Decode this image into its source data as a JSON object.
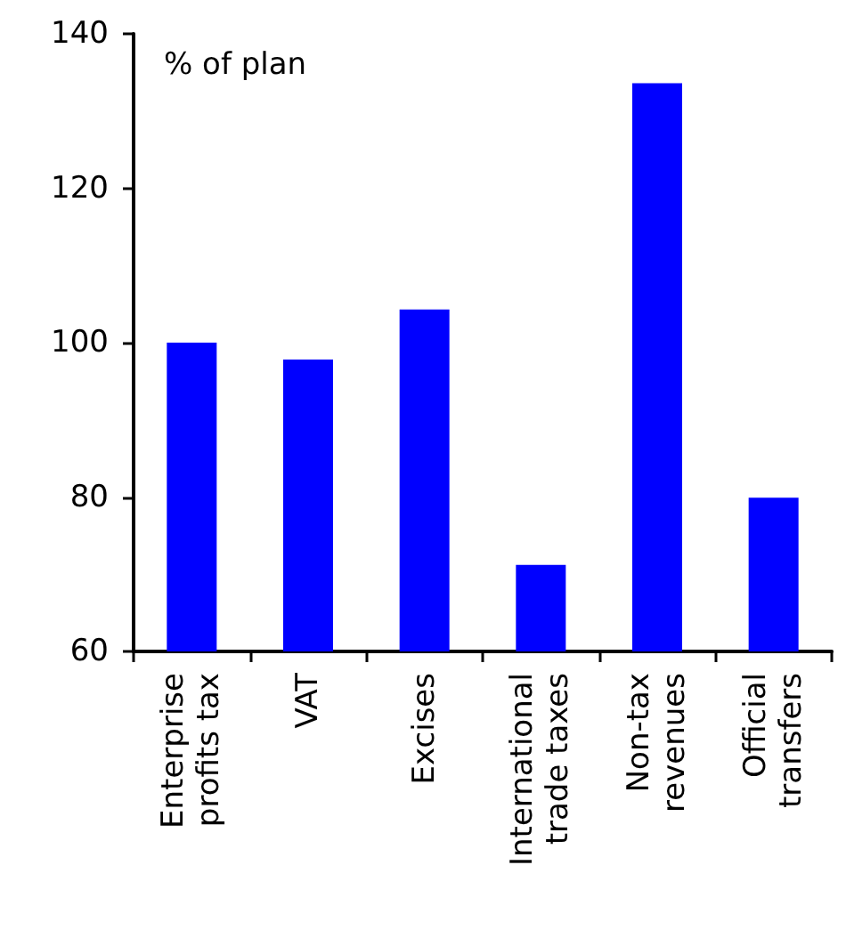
{
  "chart_data": {
    "type": "bar",
    "annotations": [
      "% of plan"
    ],
    "categories": [
      "Enterprise\nprofits tax",
      "VAT",
      "Excises",
      "International\ntrade taxes",
      "Non-tax\nrevenues",
      "Official\ntransfers"
    ],
    "values": [
      100.0,
      97.8,
      104.3,
      71.2,
      133.6,
      79.9
    ],
    "color": "#0000ff",
    "ylim": [
      60,
      140
    ],
    "yticks": [
      60,
      80,
      100,
      120,
      140
    ],
    "grid": false
  }
}
